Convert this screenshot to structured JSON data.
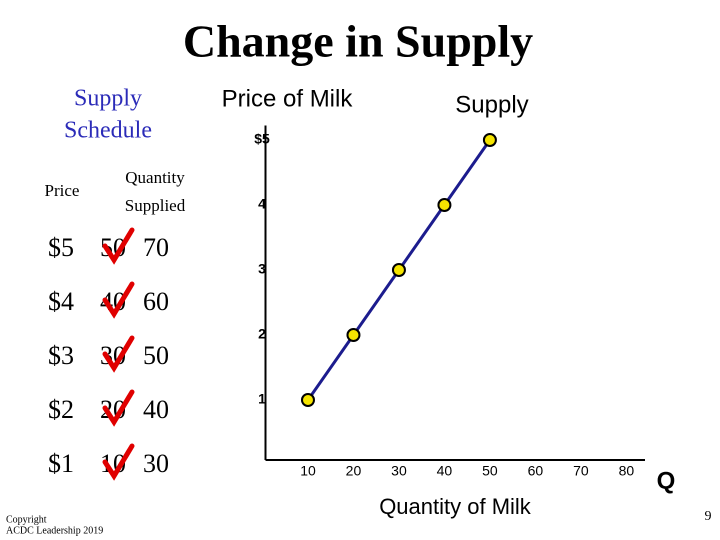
{
  "title": "Change in Supply",
  "schedule": {
    "title": [
      "Supply",
      "Schedule"
    ],
    "price_header": "Price",
    "quantity_header": [
      "Quantity",
      "Supplied"
    ],
    "rows": [
      [
        "$5",
        "50",
        "70"
      ],
      [
        "$4",
        "40",
        "60"
      ],
      [
        "$3",
        "30",
        "50"
      ],
      [
        "$2",
        "20",
        "40"
      ],
      [
        "$1",
        "10",
        "30"
      ]
    ]
  },
  "copyright": [
    "Copyright",
    "ACDC Leadership 2019"
  ],
  "page_number": "9",
  "chart_data": {
    "type": "line",
    "y_label": "Price of Milk",
    "x_label": "Quantity of Milk",
    "x_axis_symbol": "Q",
    "x": [
      10,
      20,
      30,
      40,
      50
    ],
    "series": [
      {
        "name": "Supply",
        "color": "#1c1c8e",
        "marker_color": "#f5e400",
        "values": [
          1,
          2,
          3,
          4,
          5
        ]
      }
    ],
    "xlim": [
      0,
      83
    ],
    "ylim": [
      0,
      5.3
    ],
    "xticks": [
      10,
      20,
      30,
      40,
      50,
      60,
      70,
      80
    ],
    "yticks": [
      1,
      2,
      3,
      4,
      {
        "value": 5,
        "label": "$5"
      }
    ]
  }
}
